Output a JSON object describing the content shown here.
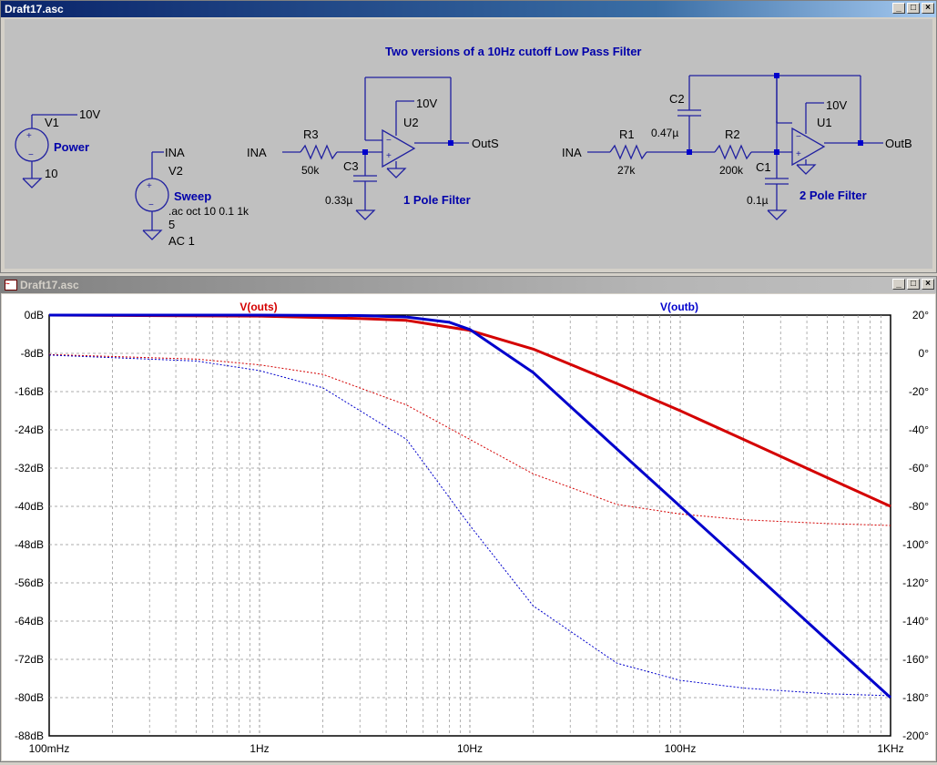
{
  "schematic_window": {
    "title": "Draft17.asc",
    "caption": "Two versions of a 10Hz cutoff Low Pass Filter",
    "power_source": {
      "name": "V1",
      "voltage_net": "10V",
      "label": "Power",
      "value": "10"
    },
    "sweep_source": {
      "net": "INA",
      "name": "V2",
      "label": "Sweep",
      "directive": ".ac oct 10 0.1 1k",
      "value": "5",
      "ac": "AC 1"
    },
    "filter1": {
      "input_net": "INA",
      "resistor": "R3",
      "resistor_value": "50k",
      "capacitor": "C3",
      "capacitor_value": "0.33µ",
      "opamp": "U2",
      "supply": "10V",
      "output_net": "OutS",
      "label": "1 Pole Filter"
    },
    "filter2": {
      "input_net": "INA",
      "r1": "R1",
      "r1_value": "27k",
      "c2": "C2",
      "c2_value": "0.47µ",
      "r2": "R2",
      "r2_value": "200k",
      "c1": "C1",
      "c1_value": "0.1µ",
      "opamp": "U1",
      "supply": "10V",
      "output_net": "OutB",
      "label": "2 Pole Filter"
    }
  },
  "plot_window": {
    "title": "Draft17.asc",
    "trace_labels": {
      "outs": "V(outs)",
      "outb": "V(outb)"
    },
    "x_ticks": [
      "100mHz",
      "1Hz",
      "10Hz",
      "100Hz",
      "1KHz"
    ],
    "y_left_ticks": [
      "0dB",
      "-8dB",
      "-16dB",
      "-24dB",
      "-32dB",
      "-40dB",
      "-48dB",
      "-56dB",
      "-64dB",
      "-72dB",
      "-80dB",
      "-88dB"
    ],
    "y_right_ticks": [
      "20°",
      "0°",
      "-20°",
      "-40°",
      "-60°",
      "-80°",
      "-100°",
      "-120°",
      "-140°",
      "-160°",
      "-180°",
      "-200°"
    ]
  },
  "colors": {
    "outs": "#d40000",
    "outb": "#0000cc",
    "schematic": "#0000aa",
    "wire": "#2020a0"
  },
  "chart_data": {
    "type": "line",
    "xscale": "log",
    "xlim": [
      0.1,
      1000
    ],
    "ylim_left": [
      -88,
      0
    ],
    "ylim_right": [
      -200,
      20
    ],
    "grid": true,
    "series": [
      {
        "name": "V(outs)",
        "kind": "magnitude_dB",
        "x": [
          0.1,
          1,
          3,
          5,
          10,
          20,
          50,
          100,
          200,
          500,
          1000
        ],
        "y": [
          0,
          -0.2,
          -0.7,
          -1.1,
          -3.2,
          -7.1,
          -14.3,
          -20,
          -26,
          -34,
          -40
        ]
      },
      {
        "name": "V(outs)",
        "kind": "phase_deg",
        "x": [
          0.1,
          0.5,
          1,
          2,
          5,
          10,
          20,
          50,
          100,
          200,
          500,
          1000
        ],
        "y": [
          -0.6,
          -3,
          -6,
          -11,
          -27,
          -45,
          -63,
          -79,
          -84,
          -87,
          -89,
          -90
        ]
      },
      {
        "name": "V(outb)",
        "kind": "magnitude_dB",
        "x": [
          0.1,
          1,
          3,
          5,
          8,
          10,
          20,
          50,
          100,
          200,
          500,
          1000
        ],
        "y": [
          0,
          0,
          -0.1,
          -0.4,
          -1.5,
          -3,
          -12,
          -28,
          -40,
          -52,
          -68,
          -80
        ]
      },
      {
        "name": "V(outb)",
        "kind": "phase_deg",
        "x": [
          0.1,
          0.5,
          1,
          2,
          5,
          10,
          20,
          50,
          100,
          200,
          500,
          1000
        ],
        "y": [
          -0.9,
          -4,
          -9,
          -18,
          -45,
          -90,
          -132,
          -162,
          -171,
          -175,
          -178,
          -179
        ]
      }
    ]
  }
}
